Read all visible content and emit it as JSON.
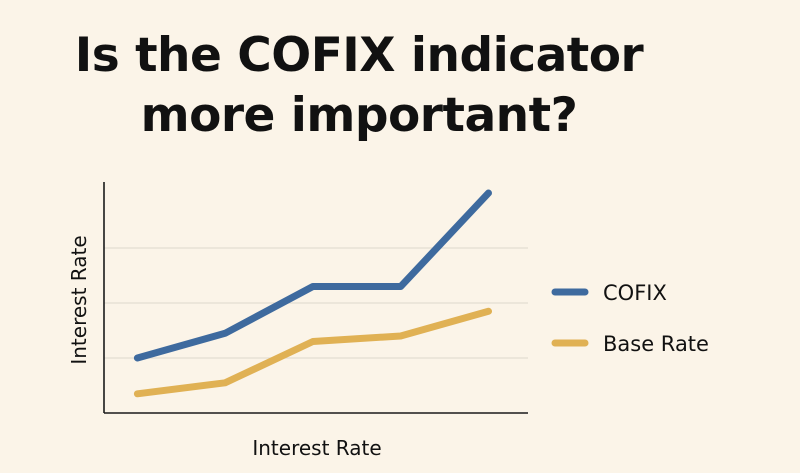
{
  "title_lines": [
    "Is the COFIX indicator",
    "more important?"
  ],
  "chart_data": {
    "type": "line",
    "title": "Is the COFIX indicator more important?",
    "xlabel": "Interest Rate",
    "ylabel": "Interest Rate",
    "x": [
      1,
      2,
      3,
      4,
      5
    ],
    "xlim": [
      0.62,
      5.45
    ],
    "ylim": [
      0,
      4.2
    ],
    "grid": true,
    "gridlines": [
      1,
      2,
      3
    ],
    "legend_position": "right",
    "series": [
      {
        "name": "COFIX",
        "color": "#3e6a9e",
        "values": [
          1.0,
          1.45,
          2.3,
          2.3,
          4.0
        ]
      },
      {
        "name": "Base Rate",
        "color": "#e0b154",
        "values": [
          0.35,
          0.55,
          1.3,
          1.4,
          1.85
        ]
      }
    ]
  }
}
